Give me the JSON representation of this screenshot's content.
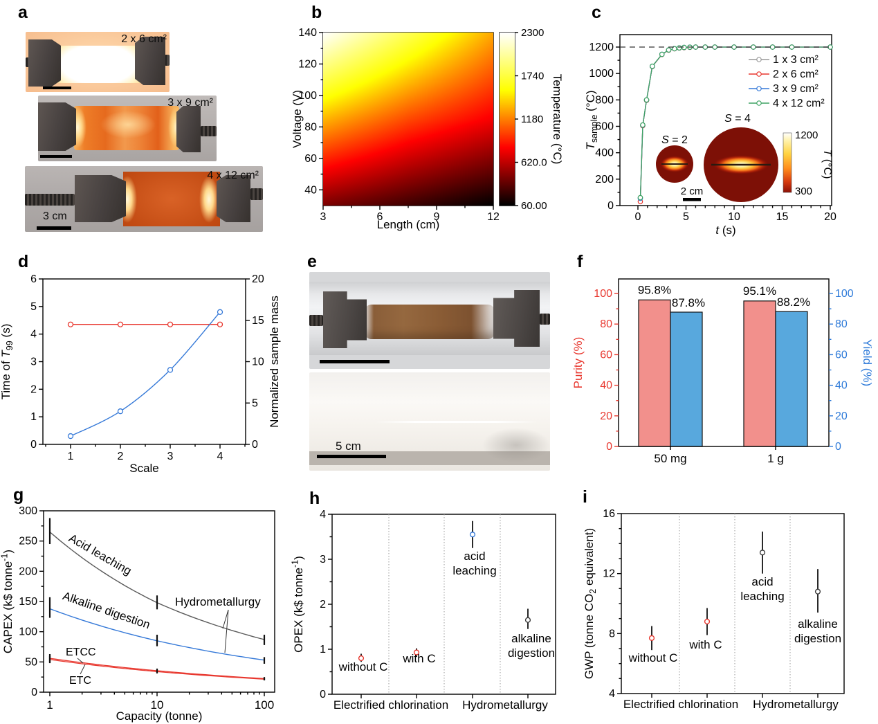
{
  "panels": {
    "a": {
      "letter": "a",
      "photos": [
        {
          "caption": "2 x 6 cm²"
        },
        {
          "caption": "3 x 9 cm²"
        },
        {
          "caption": "4 x 12 cm²",
          "scalebar_label": "3 cm"
        }
      ]
    },
    "b": {
      "letter": "b"
    },
    "c": {
      "letter": "c"
    },
    "d": {
      "letter": "d"
    },
    "e": {
      "letter": "e",
      "photos": [
        {},
        {
          "scalebar_label": "5 cm"
        }
      ]
    },
    "f": {
      "letter": "f"
    },
    "g": {
      "letter": "g"
    },
    "h": {
      "letter": "h"
    },
    "i": {
      "letter": "i"
    }
  },
  "chart_data": [
    {
      "panel": "b",
      "type": "heatmap",
      "xlabel": "Length (cm)",
      "ylabel": "Voltage (V)",
      "colorbar_label": "Temperature (°C)",
      "xlim": [
        3,
        12
      ],
      "ylim": [
        30,
        140
      ],
      "xticks": [
        3,
        6,
        9,
        12
      ],
      "xminor": [
        4.5,
        7.5,
        10.5
      ],
      "yticks": [
        40,
        60,
        80,
        100,
        120,
        140
      ],
      "yminor": [
        50,
        70,
        90,
        110,
        130
      ],
      "colorbar_ticks": [
        "2300",
        "1740",
        "1180",
        "620.0",
        "60.00"
      ],
      "tmin": 60,
      "tmax": 2300,
      "grid_x": [
        3,
        7.5,
        12
      ],
      "grid_v": [
        30,
        85,
        140
      ],
      "grid_temps": [
        [
          420,
          240,
          60
        ],
        [
          1340,
          1020,
          780
        ],
        [
          2300,
          1800,
          1300
        ]
      ]
    },
    {
      "panel": "c",
      "type": "line",
      "xlabel": "*t* (s)",
      "ylabel": "*T*_{sample} (°C)",
      "xlim": [
        -1.9,
        20.2
      ],
      "ylim": [
        0,
        1295
      ],
      "xticks": [
        0,
        5,
        10,
        15,
        20
      ],
      "yticks": [
        0,
        200,
        400,
        600,
        800,
        1000,
        1200
      ],
      "dashed_hline": 1200,
      "x": [
        0.25,
        0.5,
        0.9,
        1.5,
        2.5,
        3.2,
        3.8,
        4.3,
        4.8,
        5.4,
        6,
        7,
        8,
        10,
        12,
        14,
        16,
        20
      ],
      "series": [
        {
          "name": "1 x 3 cm²",
          "color": "#999999",
          "values": [
            60,
            610,
            800,
            1055,
            1145,
            1178,
            1188,
            1194,
            1197,
            1199,
            1200,
            1200,
            1200,
            1200,
            1200,
            1200,
            1200,
            1200
          ]
        },
        {
          "name": "2 x 6 cm²",
          "color": "#e8372e",
          "values": [
            30,
            605,
            797,
            1053,
            1144,
            1177,
            1187,
            1193,
            1196,
            1198,
            1200,
            1200,
            1200,
            1200,
            1200,
            1200,
            1200,
            1200
          ]
        },
        {
          "name": "3 x 9 cm²",
          "color": "#3579d8",
          "values": [
            55,
            608,
            799,
            1054,
            1145,
            1178,
            1188,
            1194,
            1197,
            1199,
            1200,
            1200,
            1200,
            1200,
            1200,
            1200,
            1200,
            1200
          ]
        },
        {
          "name": "4 x 12 cm²",
          "color": "#3fa464",
          "values": [
            60,
            610,
            800,
            1055,
            1145,
            1178,
            1188,
            1194,
            1197,
            1199,
            1200,
            1200,
            1200,
            1200,
            1200,
            1200,
            1200,
            1200
          ]
        }
      ],
      "inset": {
        "label_s2": "*S* = 2",
        "label_s4": "*S* = 4",
        "scalebar": "2 cm",
        "cb_top": "1200",
        "cb_bottom": "300",
        "cb_label": "*T* (°C)"
      }
    },
    {
      "panel": "d",
      "type": "dual_line",
      "xlabel": "Scale",
      "ylabel_left": "Time of *T*_{99} (s)",
      "ylabel_right": "Normalized sample mass",
      "xlim": [
        0.45,
        4.5
      ],
      "xticks": [
        1,
        2,
        3,
        4
      ],
      "xminor": [
        0.5,
        1.5,
        2.5,
        3.5,
        4.5
      ],
      "ylim_left": [
        0,
        6
      ],
      "yticks_left": [
        0,
        1,
        2,
        3,
        4,
        5,
        6
      ],
      "ylim_right": [
        0,
        20
      ],
      "yticks_right": [
        0,
        5,
        10,
        15,
        20
      ],
      "series": [
        {
          "name": "time_of_T99",
          "axis": "left",
          "color": "#e8372e",
          "x": [
            1,
            2,
            3,
            4
          ],
          "values": [
            4.35,
            4.35,
            4.35,
            4.35
          ]
        },
        {
          "name": "normalized_sample_mass",
          "axis": "right",
          "color": "#3579d8",
          "x": [
            1,
            2,
            3,
            4
          ],
          "values": [
            1,
            4,
            9,
            16
          ]
        }
      ]
    },
    {
      "panel": "f",
      "type": "bar",
      "categories": [
        "50 mg",
        "1 g"
      ],
      "ylabel_left": "Purity (%)",
      "ylabel_right": "Yield (%)",
      "ylim": [
        0,
        109.5
      ],
      "yticks": [
        0,
        20,
        40,
        60,
        80,
        100
      ],
      "left_color": "#e8372e",
      "right_color": "#2f7bd9",
      "series": [
        {
          "name": "Purity",
          "color": "#f2908c",
          "values": [
            95.8,
            95.1
          ],
          "labels": [
            "95.8%",
            "95.1%"
          ]
        },
        {
          "name": "Yield",
          "color": "#58a8dd",
          "values": [
            87.8,
            88.2
          ],
          "labels": [
            "87.8%",
            "88.2%"
          ]
        }
      ]
    },
    {
      "panel": "g",
      "type": "log_line",
      "xlabel": "Capacity (tonne)",
      "ylabel": "CAPEX (k$ tonne^{-1})",
      "xlim": [
        0.875,
        125
      ],
      "xticks": [
        1,
        10,
        100
      ],
      "ylim": [
        0,
        300
      ],
      "yticks": [
        0,
        50,
        100,
        150,
        200,
        250,
        300
      ],
      "series": [
        {
          "name": "Acid leaching",
          "color": "#5a5a5a",
          "x": [
            1,
            10,
            100
          ],
          "values": [
            265,
            148,
            87
          ],
          "err_lo": [
            245,
            137,
            78
          ],
          "err_hi": [
            288,
            160,
            95
          ]
        },
        {
          "name": "Alkaline digestion",
          "color": "#3579d8",
          "x": [
            1,
            10,
            100
          ],
          "values": [
            138,
            85,
            53
          ],
          "err_lo": [
            123,
            76,
            47
          ],
          "err_hi": [
            157,
            95,
            58
          ]
        },
        {
          "name": "ETCC",
          "color": "#e8372e",
          "x": [
            1,
            10,
            100
          ],
          "values": [
            56,
            35.5,
            22.5
          ],
          "err_lo": [
            49,
            32,
            20
          ],
          "err_hi": [
            63,
            39,
            25
          ]
        },
        {
          "name": "ETC",
          "color": "#e8372e",
          "x": [
            1,
            10,
            100
          ],
          "values": [
            54,
            34,
            21.5
          ],
          "err_lo": [
            48,
            31,
            19.5
          ],
          "err_hi": [
            60,
            37,
            23.5
          ]
        }
      ],
      "annotations": {
        "acid": "Acid leaching",
        "alkaline": "Alkaline digestion",
        "hydro": "Hydrometallurgy",
        "etcc": "ETCC",
        "etc": "ETC"
      }
    },
    {
      "panel": "h",
      "type": "scatter_err",
      "ylabel": "OPEX (k$ tonne^{-1})",
      "ylim": [
        0,
        4
      ],
      "yticks": [
        0,
        1,
        2,
        3,
        4
      ],
      "group_labels": [
        "Electrified chlorination",
        "Hydrometallurgy"
      ],
      "points": [
        {
          "label": "without C",
          "value": 0.8,
          "lo": 0.72,
          "hi": 0.9,
          "color": "#e8372e"
        },
        {
          "label": "with C",
          "value": 0.93,
          "lo": 0.85,
          "hi": 1.02,
          "color": "#e8372e"
        },
        {
          "label": "acid leaching",
          "value": 3.55,
          "lo": 3.25,
          "hi": 3.85,
          "color": "#3579d8"
        },
        {
          "label": "alkaline digestion",
          "value": 1.65,
          "lo": 1.45,
          "hi": 1.9,
          "color": "#3b3b3b"
        }
      ]
    },
    {
      "panel": "i",
      "type": "scatter_err",
      "ylabel": "GWP (tonne CO_{2} equivalent)",
      "ylim": [
        4,
        16
      ],
      "yticks": [
        4,
        8,
        12,
        16
      ],
      "group_labels": [
        "Electrified chlorination",
        "Hydrometallurgy"
      ],
      "points": [
        {
          "label": "without C",
          "value": 7.7,
          "lo": 6.9,
          "hi": 8.5,
          "color": "#e8372e"
        },
        {
          "label": "with C",
          "value": 8.8,
          "lo": 7.9,
          "hi": 9.7,
          "color": "#e8372e"
        },
        {
          "label": "acid leaching",
          "value": 13.4,
          "lo": 12.0,
          "hi": 14.8,
          "color": "#3b3b3b"
        },
        {
          "label": "alkaline digestion",
          "value": 10.8,
          "lo": 9.4,
          "hi": 12.3,
          "color": "#3b3b3b"
        }
      ]
    }
  ]
}
